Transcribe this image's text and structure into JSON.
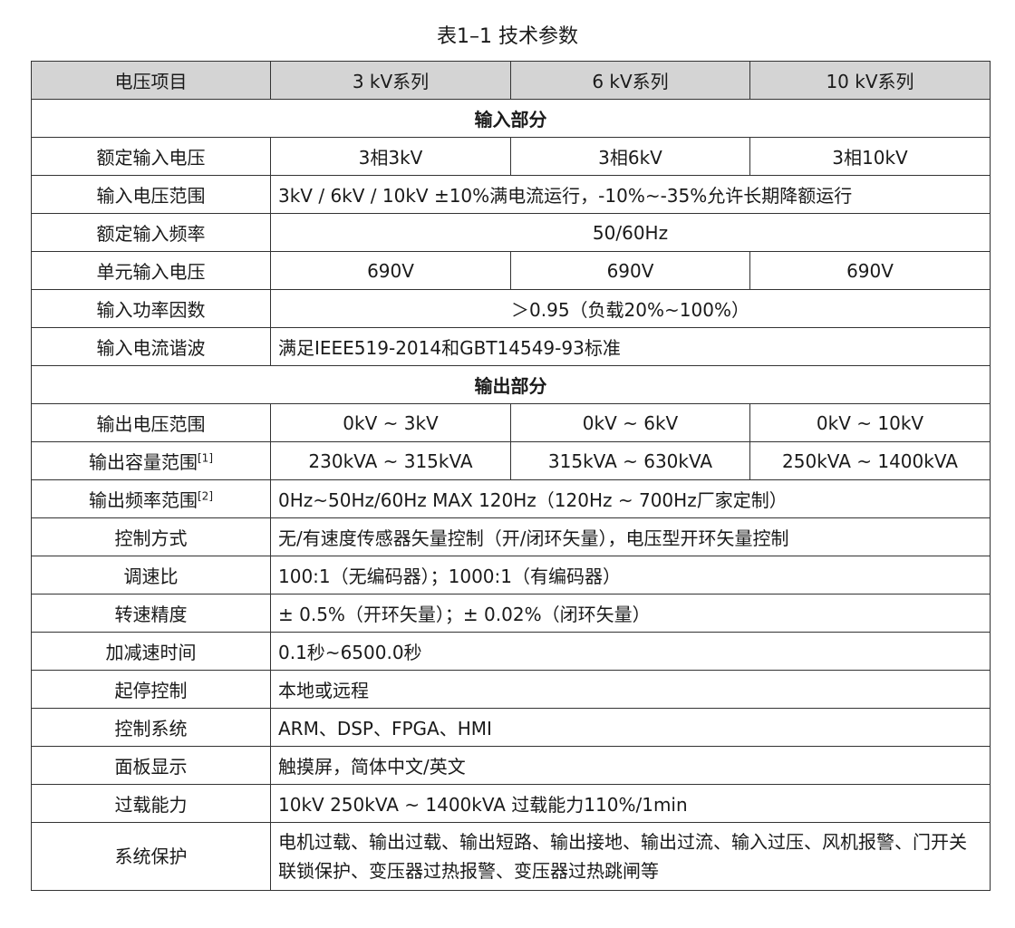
{
  "title": "表1–1 技术参数",
  "header": [
    "电压项目",
    "3 kV系列",
    "6 kV系列",
    "10 kV系列"
  ],
  "rows": [
    {
      "section": "输入部分"
    },
    {
      "label": "额定输入电压",
      "cells": [
        "3相3kV",
        "3相6kV",
        "3相10kV"
      ]
    },
    {
      "label": "输入电压范围",
      "span": "3kV / 6kV / 10kV ±10%满电流运行，-10%~-35%允许长期降额运行",
      "align": "left"
    },
    {
      "label": "额定输入频率",
      "span": "50/60Hz",
      "align": "center"
    },
    {
      "label": "单元输入电压",
      "cells": [
        "690V",
        "690V",
        "690V"
      ]
    },
    {
      "label": "输入功率因数",
      "span": "＞0.95（负载20%~100%）",
      "align": "center"
    },
    {
      "label": "输入电流谐波",
      "span": "满足IEEE519-2014和GBT14549-93标准",
      "align": "left"
    },
    {
      "section": "输出部分"
    },
    {
      "label": "输出电压范围",
      "cells": [
        "0kV ~ 3kV",
        "0kV ~ 6kV",
        "0kV ~ 10kV"
      ]
    },
    {
      "label": "输出容量范围",
      "sup": "[1]",
      "cells": [
        "230kVA ~ 315kVA",
        "315kVA ~ 630kVA",
        "250kVA ~ 1400kVA"
      ]
    },
    {
      "label": "输出频率范围",
      "sup": "[2]",
      "span": "0Hz~50Hz/60Hz  MAX 120Hz（120Hz ~ 700Hz厂家定制）",
      "align": "left"
    },
    {
      "label": "控制方式",
      "span": "无/有速度传感器矢量控制（开/闭环矢量），电压型开环矢量控制",
      "align": "left"
    },
    {
      "label": "调速比",
      "span": "100:1（无编码器）；1000:1（有编码器）",
      "align": "left"
    },
    {
      "label": "转速精度",
      "span": "± 0.5%（开环矢量）；± 0.02%（闭环矢量）",
      "align": "left"
    },
    {
      "label": "加减速时间",
      "span": "0.1秒~6500.0秒",
      "align": "left"
    },
    {
      "label": "起停控制",
      "span": "本地或远程",
      "align": "left"
    },
    {
      "label": "控制系统",
      "span": "ARM、DSP、FPGA、HMI",
      "align": "left"
    },
    {
      "label": "面板显示",
      "span": "触摸屏，简体中文/英文",
      "align": "left"
    },
    {
      "label": "过载能力",
      "span": "10kV 250kVA ~ 1400kVA 过载能力110%/1min",
      "align": "left"
    },
    {
      "label": "系统保护",
      "span": "电机过载、输出过载、输出短路、输出接地、输出过流、输入过压、风机报警、门开关联锁保护、变压器过热报警、变压器过热跳闸等",
      "align": "left",
      "tall": true
    }
  ]
}
